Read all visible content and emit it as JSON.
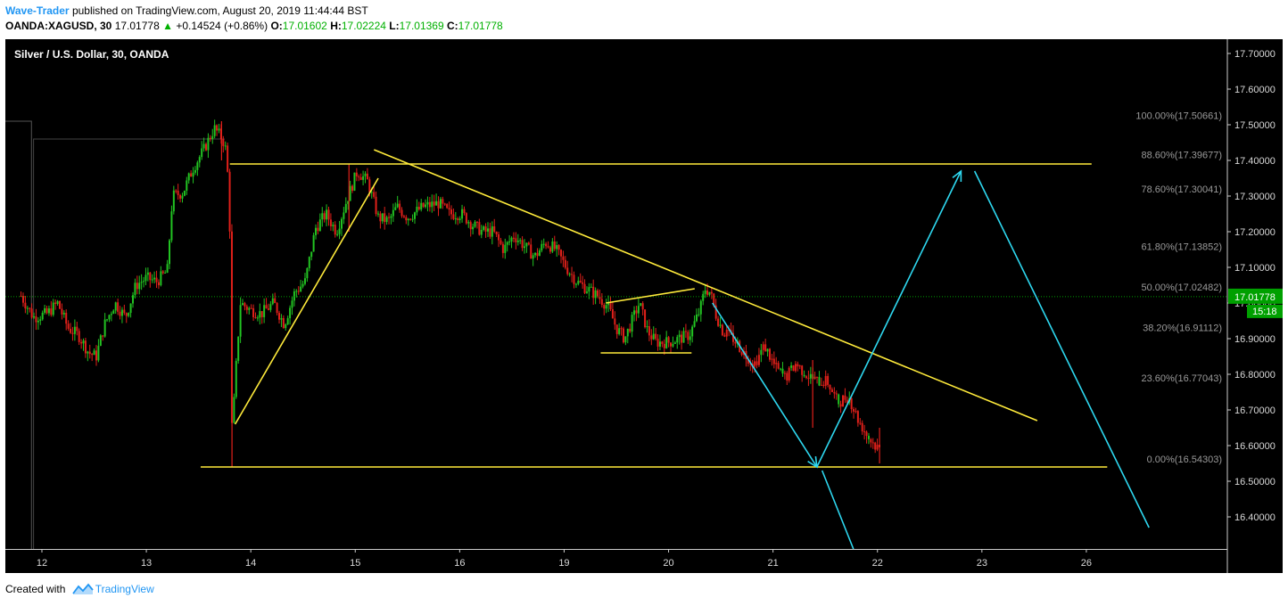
{
  "header": {
    "author": "Wave-Trader",
    "published": "published on TradingView.com, August 20, 2019 11:44:44 BST",
    "symbol": "OANDA:XAGUSD, 30",
    "last": "17.01778",
    "change_symbol": "▲",
    "change": "+0.14524 (+0.86%)",
    "o_label": "O:",
    "o_value": "17.01602",
    "h_label": "H:",
    "h_value": "17.02224",
    "l_label": "L:",
    "l_value": "17.01369",
    "c_label": "C:",
    "c_value": "17.01778"
  },
  "footer": {
    "created_with": "Created with",
    "brand": "TradingView"
  },
  "chart_data": {
    "type": "candlestick",
    "title": "Silver / U.S. Dollar, 30, OANDA",
    "ylim": [
      16.31,
      17.74
    ],
    "y_ticks": [
      16.4,
      16.5,
      16.6,
      16.7,
      16.8,
      16.9,
      17.0,
      17.1,
      17.2,
      17.3,
      17.4,
      17.5,
      17.6,
      17.7
    ],
    "x_ticks": [
      {
        "label": "12",
        "pos": 0.2
      },
      {
        "label": "13",
        "pos": 1.2
      },
      {
        "label": "14",
        "pos": 2.2
      },
      {
        "label": "15",
        "pos": 3.2
      },
      {
        "label": "16",
        "pos": 4.2
      },
      {
        "label": "19",
        "pos": 5.2
      },
      {
        "label": "20",
        "pos": 6.2
      },
      {
        "label": "21",
        "pos": 7.2
      },
      {
        "label": "22",
        "pos": 8.2
      },
      {
        "label": "23",
        "pos": 9.2
      },
      {
        "label": "26",
        "pos": 10.2
      }
    ],
    "xlim": [
      -0.15,
      11.55
    ],
    "last_price": {
      "value": 17.01778,
      "label": "17.01778",
      "countdown": "15:18"
    },
    "current_price_line": 17.01778,
    "fibonacci": [
      {
        "label": "100.00%(17.50661)",
        "price": 17.50661
      },
      {
        "label": "88.60%(17.39677)",
        "price": 17.39677
      },
      {
        "label": "78.60%(17.30041)",
        "price": 17.30041
      },
      {
        "label": "61.80%(17.13852)",
        "price": 17.13852
      },
      {
        "label": "50.00%(17.02482)",
        "price": 17.02482
      },
      {
        "label": "38.20%(16.91112)",
        "price": 16.91112
      },
      {
        "label": "23.60%(16.77043)",
        "price": 16.77043
      },
      {
        "label": "0.00%(16.54303)",
        "price": 16.54303
      }
    ],
    "price_path": [
      [
        0.0,
        17.02
      ],
      [
        0.12,
        16.96
      ],
      [
        0.25,
        16.97
      ],
      [
        0.35,
        17.0
      ],
      [
        0.45,
        16.93
      ],
      [
        0.55,
        16.91
      ],
      [
        0.65,
        16.86
      ],
      [
        0.72,
        16.85
      ],
      [
        0.8,
        16.94
      ],
      [
        0.9,
        17.0
      ],
      [
        1.0,
        16.96
      ],
      [
        1.1,
        17.05
      ],
      [
        1.2,
        17.07
      ],
      [
        1.3,
        17.06
      ],
      [
        1.4,
        17.09
      ],
      [
        1.45,
        17.3
      ],
      [
        1.55,
        17.31
      ],
      [
        1.65,
        17.38
      ],
      [
        1.75,
        17.43
      ],
      [
        1.85,
        17.49
      ],
      [
        1.93,
        17.46
      ],
      [
        1.97,
        17.42
      ],
      [
        2.0,
        17.2
      ],
      [
        2.02,
        16.62
      ],
      [
        2.05,
        16.78
      ],
      [
        2.1,
        17.0
      ],
      [
        2.2,
        16.98
      ],
      [
        2.3,
        16.97
      ],
      [
        2.42,
        17.0
      ],
      [
        2.52,
        16.94
      ],
      [
        2.62,
        17.03
      ],
      [
        2.72,
        17.06
      ],
      [
        2.82,
        17.21
      ],
      [
        2.92,
        17.25
      ],
      [
        3.02,
        17.2
      ],
      [
        3.12,
        17.29
      ],
      [
        3.22,
        17.37
      ],
      [
        3.32,
        17.34
      ],
      [
        3.42,
        17.24
      ],
      [
        3.52,
        17.23
      ],
      [
        3.6,
        17.27
      ],
      [
        3.7,
        17.24
      ],
      [
        3.85,
        17.27
      ],
      [
        4.0,
        17.28
      ],
      [
        4.1,
        17.25
      ],
      [
        4.22,
        17.25
      ],
      [
        4.32,
        17.22
      ],
      [
        4.42,
        17.2
      ],
      [
        4.52,
        17.2
      ],
      [
        4.62,
        17.15
      ],
      [
        4.72,
        17.19
      ],
      [
        4.82,
        17.16
      ],
      [
        4.92,
        17.13
      ],
      [
        5.02,
        17.17
      ],
      [
        5.12,
        17.15
      ],
      [
        5.22,
        17.1
      ],
      [
        5.32,
        17.06
      ],
      [
        5.42,
        17.04
      ],
      [
        5.52,
        17.02
      ],
      [
        5.62,
        16.99
      ],
      [
        5.7,
        16.93
      ],
      [
        5.78,
        16.9
      ],
      [
        5.85,
        16.95
      ],
      [
        5.92,
        17.0
      ],
      [
        6.0,
        16.92
      ],
      [
        6.08,
        16.89
      ],
      [
        6.2,
        16.89
      ],
      [
        6.3,
        16.9
      ],
      [
        6.4,
        16.91
      ],
      [
        6.5,
        16.98
      ],
      [
        6.55,
        17.04
      ],
      [
        6.6,
        17.03
      ],
      [
        6.65,
        16.97
      ],
      [
        6.72,
        16.92
      ],
      [
        6.82,
        16.9
      ],
      [
        6.92,
        16.86
      ],
      [
        7.02,
        16.83
      ],
      [
        7.12,
        16.88
      ],
      [
        7.22,
        16.82
      ],
      [
        7.32,
        16.79
      ],
      [
        7.42,
        16.83
      ],
      [
        7.52,
        16.8
      ],
      [
        7.62,
        16.78
      ],
      [
        7.72,
        16.78
      ],
      [
        7.82,
        16.72
      ],
      [
        7.92,
        16.74
      ],
      [
        8.02,
        16.67
      ],
      [
        8.12,
        16.62
      ],
      [
        8.18,
        16.6
      ],
      [
        8.22,
        16.59
      ]
    ],
    "path_first_red_index": 73,
    "spikes": [
      {
        "x": 2.02,
        "low": 16.54,
        "high": 17.0
      },
      {
        "x": 1.92,
        "low": 17.4,
        "high": 17.51
      },
      {
        "x": 3.14,
        "low": 17.2,
        "high": 17.39
      },
      {
        "x": 7.58,
        "low": 16.65,
        "high": 16.84
      },
      {
        "x": 8.22,
        "low": 16.55,
        "high": 16.65
      }
    ],
    "yellow_lines": [
      [
        [
          2.0,
          17.39
        ],
        [
          10.25,
          17.39
        ]
      ],
      [
        [
          1.72,
          16.54
        ],
        [
          10.4,
          16.54
        ]
      ],
      [
        [
          2.05,
          16.66
        ],
        [
          3.42,
          17.35
        ]
      ],
      [
        [
          3.38,
          17.43
        ],
        [
          9.73,
          16.67
        ]
      ],
      [
        [
          5.6,
          17.0
        ],
        [
          6.45,
          17.04
        ]
      ],
      [
        [
          5.55,
          16.86
        ],
        [
          6.42,
          16.86
        ]
      ]
    ],
    "blue_lines": [
      [
        [
          6.62,
          17.0
        ],
        [
          7.62,
          16.54
        ]
      ],
      [
        [
          7.62,
          16.54
        ],
        [
          9.0,
          17.37
        ]
      ],
      [
        [
          9.13,
          17.37
        ],
        [
          10.8,
          16.37
        ]
      ],
      [
        [
          7.67,
          16.53
        ],
        [
          7.97,
          16.31
        ]
      ]
    ],
    "colors": {
      "background": "#000000",
      "up": "#22c322",
      "down": "#e0201a",
      "trendline": "#ffeb3b",
      "projection": "#2ed8f0",
      "price_line": "#00a000",
      "axis_text": "#d9d9d9",
      "fib_text": "#999999"
    }
  }
}
